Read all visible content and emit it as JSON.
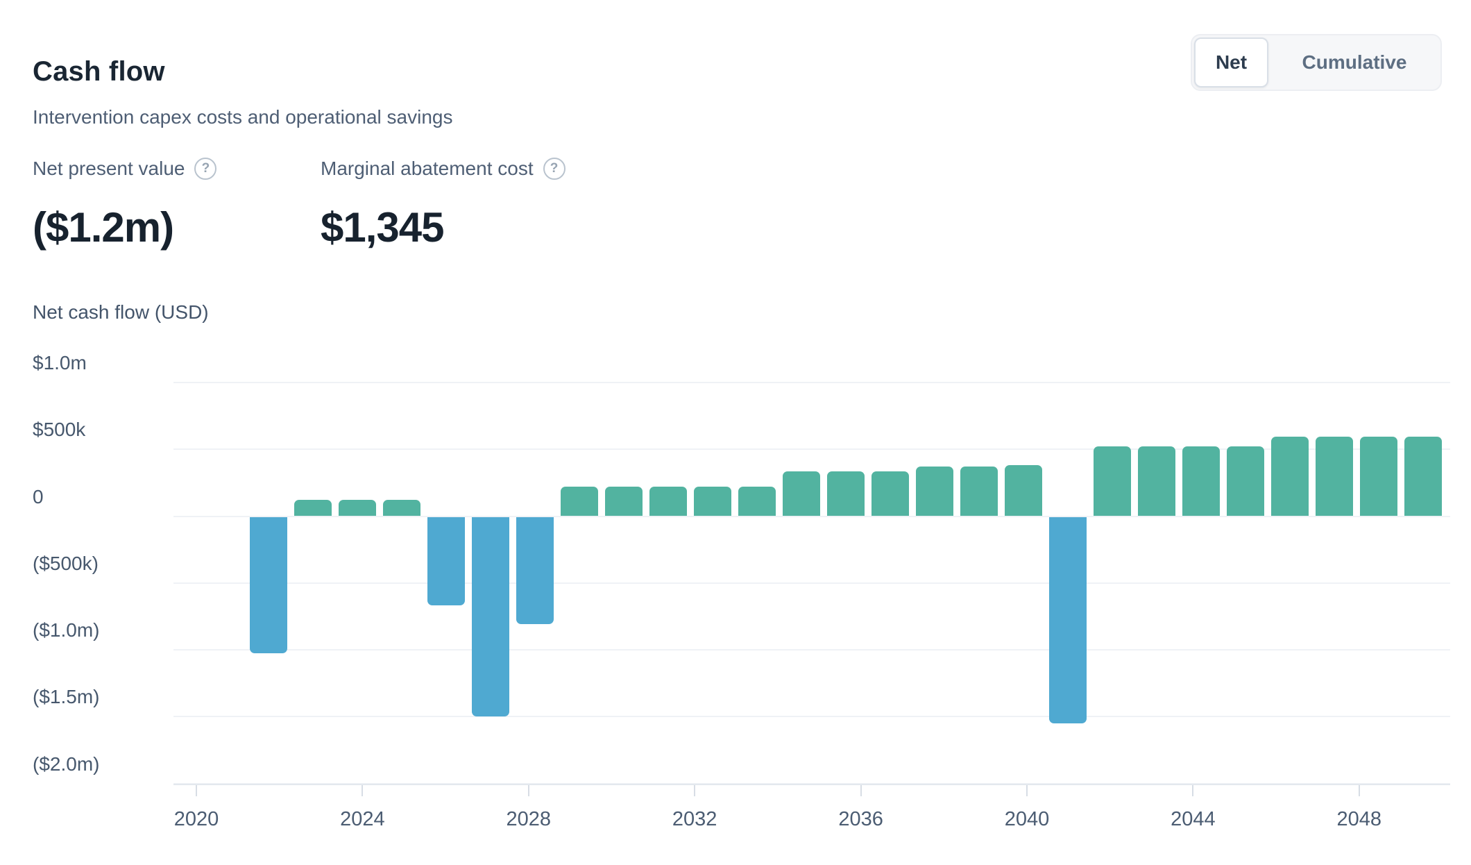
{
  "header": {
    "title": "Cash flow",
    "subtitle": "Intervention capex costs and operational savings"
  },
  "toggle": {
    "options": [
      "Net",
      "Cumulative"
    ],
    "active": "Net"
  },
  "kpis": [
    {
      "label": "Net present value",
      "value": "($1.2m)",
      "help_icon": "?"
    },
    {
      "label": "Marginal abatement cost",
      "value": "$1,345",
      "help_icon": "?"
    }
  ],
  "chart_data": {
    "type": "bar",
    "title": "Net cash flow (USD)",
    "ylabel": "Net cash flow (USD)",
    "xlabel": "",
    "x": [
      2022,
      2023,
      2024,
      2025,
      2026,
      2027,
      2028,
      2029,
      2030,
      2031,
      2032,
      2033,
      2034,
      2035,
      2036,
      2037,
      2038,
      2039,
      2040,
      2041,
      2042,
      2043,
      2044,
      2045,
      2046,
      2047,
      2048
    ],
    "values": [
      -1020000,
      120000,
      120000,
      120000,
      -660000,
      -1490000,
      -800000,
      220000,
      220000,
      220000,
      220000,
      220000,
      330000,
      330000,
      330000,
      370000,
      370000,
      380000,
      -1540000,
      520000,
      520000,
      520000,
      520000,
      590000,
      590000,
      590000,
      590000
    ],
    "ylim": [
      -2000000,
      1000000
    ],
    "y_ticks": [
      {
        "label": "$1.0m",
        "value": 1000000
      },
      {
        "label": "$500k",
        "value": 500000
      },
      {
        "label": "0",
        "value": 0
      },
      {
        "label": "($500k)",
        "value": -500000
      },
      {
        "label": "($1.0m)",
        "value": -1000000
      },
      {
        "label": "($1.5m)",
        "value": -1500000
      },
      {
        "label": "($2.0m)",
        "value": -2000000
      }
    ],
    "x_tick_labels": [
      2020,
      2024,
      2028,
      2032,
      2036,
      2040,
      2044,
      2048
    ],
    "positive_color": "#52b3a0",
    "negative_color": "#4fa9d1",
    "grid": "horizontal",
    "legend_position": "none"
  }
}
